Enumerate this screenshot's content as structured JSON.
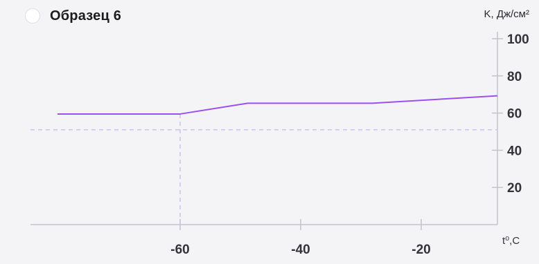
{
  "header": {
    "title": "Образец 6",
    "y_unit": "K, Дж/см²",
    "x_unit": "t⁰,C"
  },
  "colors": {
    "line": "#9b4ff0",
    "guide": "#c9c2f4",
    "axis": "#c4c4c8",
    "background": "#f4f4f6"
  },
  "chart_data": {
    "type": "line",
    "title": "Образец 6",
    "xlabel": "t⁰,C",
    "ylabel": "K, Дж/см²",
    "xlim": [
      -80,
      -10
    ],
    "ylim": [
      0,
      105
    ],
    "x_ticks": [
      -60,
      -40,
      -20
    ],
    "y_ticks": [
      20,
      40,
      60,
      80,
      100
    ],
    "series": [
      {
        "x": [
          -80,
          -60,
          -48.8,
          -28.1,
          -11
        ],
        "y": [
          59.5,
          59.5,
          65.3,
          65.3,
          69.3
        ]
      }
    ],
    "reference_line": {
      "y": 51,
      "x": -60
    },
    "grid": false
  }
}
